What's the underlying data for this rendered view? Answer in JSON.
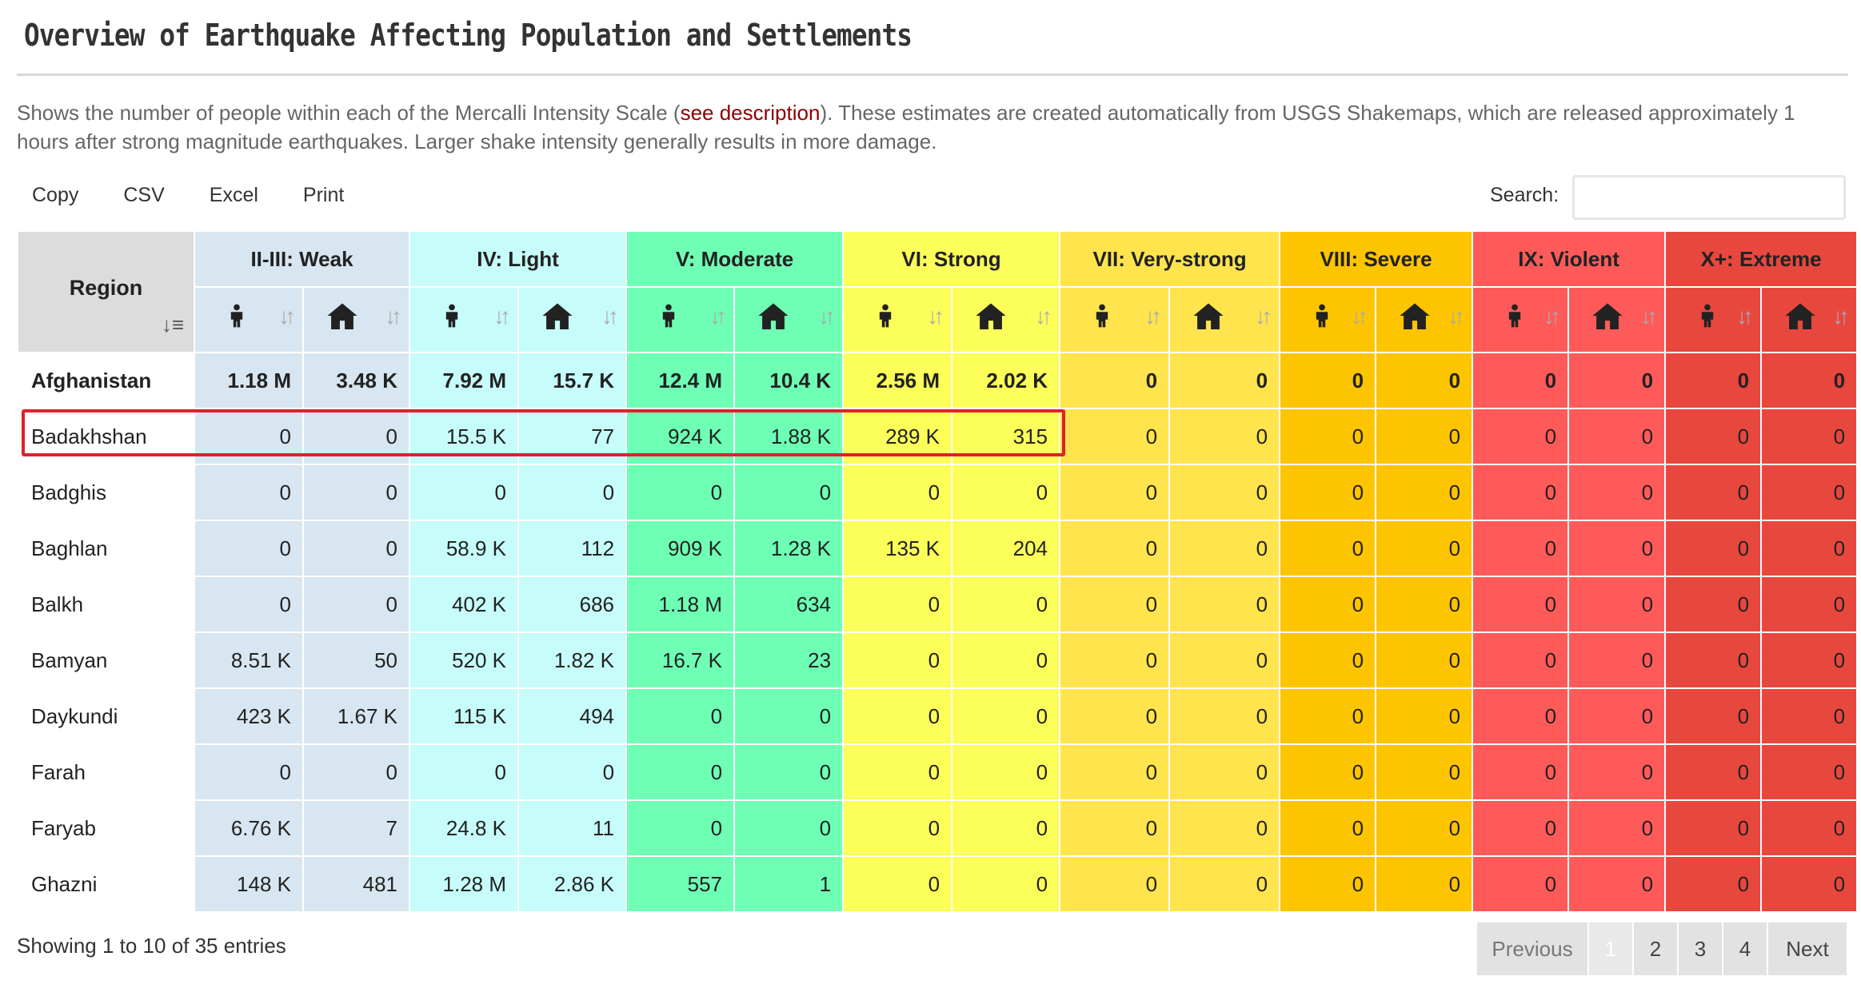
{
  "title": "Overview of Earthquake Affecting Population and Settlements",
  "description": {
    "before": "Shows the number of people within each of the Mercalli Intensity Scale (",
    "link": "see description",
    "after": "). These estimates are created automatically from USGS Shakemaps, which are released approximately 1 hours after strong magnitude earthquakes. Larger shake intensity generally results in more damage."
  },
  "toolbar": {
    "copy": "Copy",
    "csv": "CSV",
    "excel": "Excel",
    "print": "Print",
    "search_label": "Search:"
  },
  "table": {
    "region_header": "Region",
    "groups": [
      "II-III: Weak",
      "IV: Light",
      "V: Moderate",
      "VI: Strong",
      "VII: Very-strong",
      "VIII: Severe",
      "IX: Violent",
      "X+: Extreme"
    ],
    "rows": [
      {
        "region": "Afghanistan",
        "values": [
          "1.18 M",
          "3.48 K",
          "7.92 M",
          "15.7 K",
          "12.4 M",
          "10.4 K",
          "2.56 M",
          "2.02 K",
          "0",
          "0",
          "0",
          "0",
          "0",
          "0",
          "0",
          "0"
        ]
      },
      {
        "region": "Badakhshan",
        "values": [
          "0",
          "0",
          "15.5 K",
          "77",
          "924 K",
          "1.88 K",
          "289 K",
          "315",
          "0",
          "0",
          "0",
          "0",
          "0",
          "0",
          "0",
          "0"
        ]
      },
      {
        "region": "Badghis",
        "values": [
          "0",
          "0",
          "0",
          "0",
          "0",
          "0",
          "0",
          "0",
          "0",
          "0",
          "0",
          "0",
          "0",
          "0",
          "0",
          "0"
        ]
      },
      {
        "region": "Baghlan",
        "values": [
          "0",
          "0",
          "58.9 K",
          "112",
          "909 K",
          "1.28 K",
          "135 K",
          "204",
          "0",
          "0",
          "0",
          "0",
          "0",
          "0",
          "0",
          "0"
        ]
      },
      {
        "region": "Balkh",
        "values": [
          "0",
          "0",
          "402 K",
          "686",
          "1.18 M",
          "634",
          "0",
          "0",
          "0",
          "0",
          "0",
          "0",
          "0",
          "0",
          "0",
          "0"
        ]
      },
      {
        "region": "Bamyan",
        "values": [
          "8.51 K",
          "50",
          "520 K",
          "1.82 K",
          "16.7 K",
          "23",
          "0",
          "0",
          "0",
          "0",
          "0",
          "0",
          "0",
          "0",
          "0",
          "0"
        ]
      },
      {
        "region": "Daykundi",
        "values": [
          "423 K",
          "1.67 K",
          "115 K",
          "494",
          "0",
          "0",
          "0",
          "0",
          "0",
          "0",
          "0",
          "0",
          "0",
          "0",
          "0",
          "0"
        ]
      },
      {
        "region": "Farah",
        "values": [
          "0",
          "0",
          "0",
          "0",
          "0",
          "0",
          "0",
          "0",
          "0",
          "0",
          "0",
          "0",
          "0",
          "0",
          "0",
          "0"
        ]
      },
      {
        "region": "Faryab",
        "values": [
          "6.76 K",
          "7",
          "24.8 K",
          "11",
          "0",
          "0",
          "0",
          "0",
          "0",
          "0",
          "0",
          "0",
          "0",
          "0",
          "0",
          "0"
        ]
      },
      {
        "region": "Ghazni",
        "values": [
          "148 K",
          "481",
          "1.28 M",
          "2.86 K",
          "557",
          "1",
          "0",
          "0",
          "0",
          "0",
          "0",
          "0",
          "0",
          "0",
          "0",
          "0"
        ]
      }
    ]
  },
  "footer": {
    "info": "Showing 1 to 10 of 35 entries",
    "previous": "Previous",
    "pages": [
      "1",
      "2",
      "3",
      "4"
    ],
    "next": "Next"
  }
}
